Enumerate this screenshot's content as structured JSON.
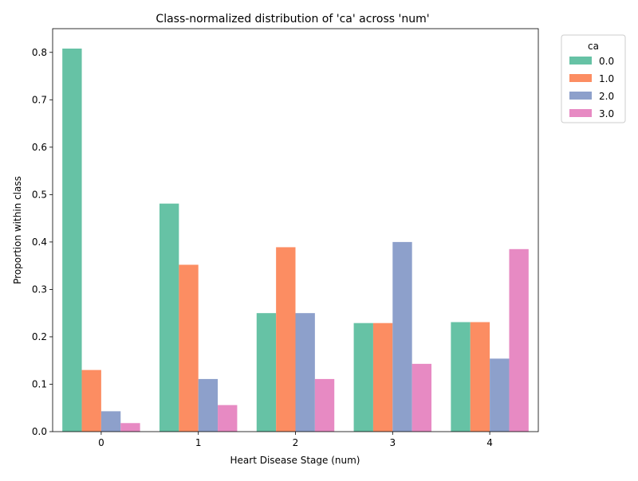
{
  "chart_data": {
    "type": "bar",
    "title": "Class-normalized distribution of 'ca' across 'num'",
    "xlabel": "Heart Disease Stage (num)",
    "ylabel": "Proportion within class",
    "categories": [
      "0",
      "1",
      "2",
      "3",
      "4"
    ],
    "ylim": [
      0,
      0.85
    ],
    "yticks": [
      "0.0",
      "0.1",
      "0.2",
      "0.3",
      "0.4",
      "0.5",
      "0.6",
      "0.7",
      "0.8"
    ],
    "grid": false,
    "legend": {
      "title": "ca",
      "placement": "outside-top-right"
    },
    "series": [
      {
        "name": "0.0",
        "color": "#66c2a5",
        "values": [
          0.808,
          0.481,
          0.25,
          0.229,
          0.231
        ]
      },
      {
        "name": "1.0",
        "color": "#fc8d62",
        "values": [
          0.13,
          0.352,
          0.389,
          0.229,
          0.231
        ]
      },
      {
        "name": "2.0",
        "color": "#8da0cb",
        "values": [
          0.043,
          0.111,
          0.25,
          0.4,
          0.154
        ]
      },
      {
        "name": "3.0",
        "color": "#e78ac3",
        "values": [
          0.018,
          0.056,
          0.111,
          0.143,
          0.385
        ]
      }
    ]
  }
}
